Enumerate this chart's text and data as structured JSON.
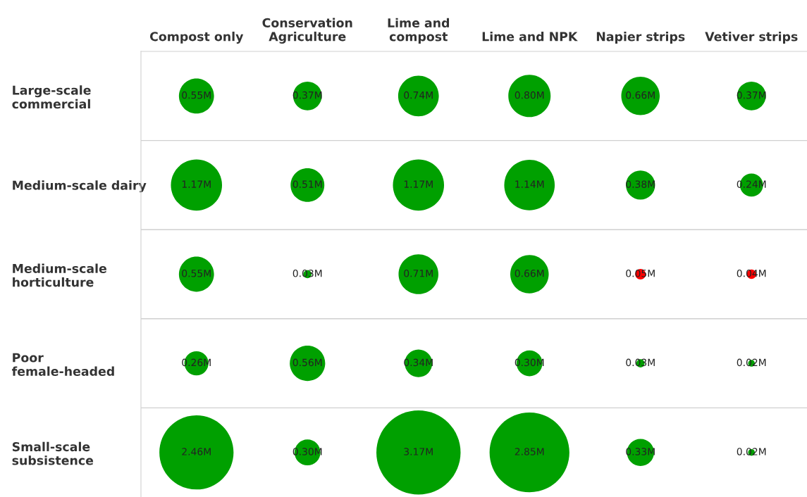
{
  "chart_data": {
    "type": "other",
    "categories": [
      "Compost only",
      "Conservation\nAgriculture",
      "Lime and\ncompost",
      "Lime and NPK",
      "Napier strips",
      "Vetiver strips"
    ],
    "y_categories": [
      "Large-scale\ncommercial",
      "Medium-scale dairy",
      "Medium-scale\nhorticulture",
      "Poor\nfemale-headed",
      "Small-scale\nsubsistence"
    ],
    "series": [
      {
        "values": [
          0.55,
          0.37,
          0.74,
          0.8,
          0.66,
          0.37
        ],
        "colors": [
          "#00a000",
          "#00a000",
          "#00a000",
          "#00a000",
          "#00a000",
          "#00a000"
        ],
        "value_labels": [
          "0.55M",
          "0.37M",
          "0.74M",
          "0.80M",
          "0.66M",
          "0.37M"
        ]
      },
      {
        "values": [
          1.17,
          0.51,
          1.17,
          1.14,
          0.38,
          0.24
        ],
        "colors": [
          "#00a000",
          "#00a000",
          "#00a000",
          "#00a000",
          "#00a000",
          "#00a000"
        ],
        "value_labels": [
          "1.17M",
          "0.51M",
          "1.17M",
          "1.14M",
          "0.38M",
          "0.24M"
        ]
      },
      {
        "values": [
          0.55,
          0.03,
          0.71,
          0.66,
          0.05,
          0.04
        ],
        "colors": [
          "#00a000",
          "#00a000",
          "#00a000",
          "#00a000",
          "#ff0000",
          "#ff0000"
        ],
        "value_labels": [
          "0.55M",
          "0.03M",
          "0.71M",
          "0.66M",
          "0.05M",
          "0.04M"
        ]
      },
      {
        "values": [
          0.26,
          0.56,
          0.34,
          0.3,
          0.03,
          0.02
        ],
        "colors": [
          "#00a000",
          "#00a000",
          "#00a000",
          "#00a000",
          "#00a000",
          "#00a000"
        ],
        "value_labels": [
          "0.26M",
          "0.56M",
          "0.34M",
          "0.30M",
          "0.03M",
          "0.02M"
        ]
      },
      {
        "values": [
          2.46,
          0.3,
          3.17,
          2.85,
          0.33,
          0.02
        ],
        "colors": [
          "#00a000",
          "#00a000",
          "#00a000",
          "#00a000",
          "#00a000",
          "#00a000"
        ],
        "value_labels": [
          "2.46M",
          "0.30M",
          "3.17M",
          "2.85M",
          "0.33M",
          "0.02M"
        ]
      }
    ]
  }
}
